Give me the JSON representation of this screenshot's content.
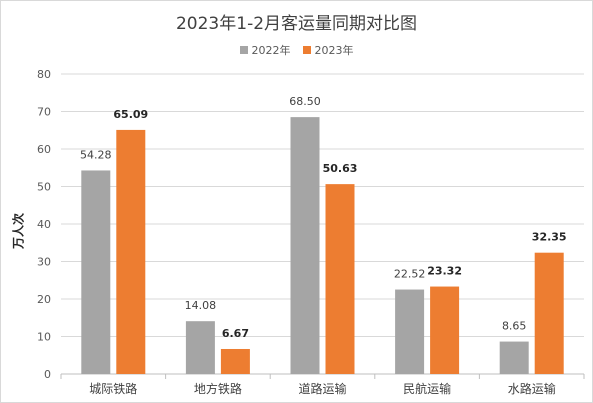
{
  "chart_data": {
    "type": "bar",
    "title": "2023年1-2月客运量同期对比图",
    "xlabel": "",
    "ylabel": "万人次",
    "ylim": [
      0,
      80
    ],
    "ytick_step": 10,
    "grid": true,
    "legend_position": "top",
    "categories": [
      "城际铁路",
      "地方铁路",
      "道路运输",
      "民航运输",
      "水路运输"
    ],
    "series": [
      {
        "name": "2022年",
        "color": "#a5a5a5",
        "values": [
          54.28,
          14.08,
          68.5,
          22.52,
          8.65
        ],
        "labels": [
          "54.28",
          "14.08",
          "68.50",
          "22.52",
          "8.65"
        ],
        "label_bold": false
      },
      {
        "name": "2023年",
        "color": "#ed7d31",
        "values": [
          65.09,
          6.67,
          50.63,
          23.32,
          32.35
        ],
        "labels": [
          "65.09",
          "6.67",
          "50.63",
          "23.32",
          "32.35"
        ],
        "label_bold": true
      }
    ]
  }
}
